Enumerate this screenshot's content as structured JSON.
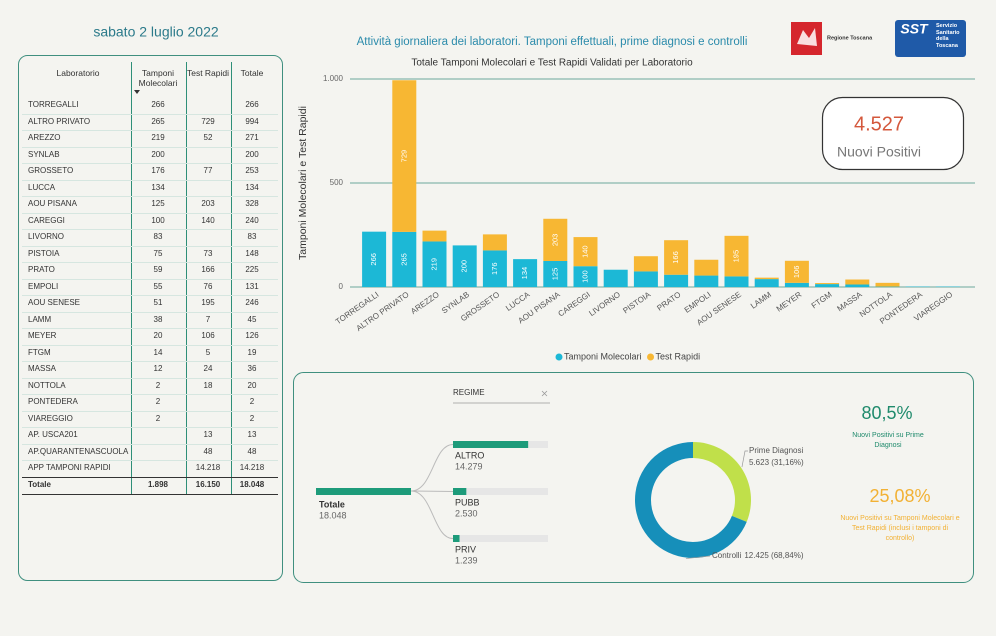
{
  "header": {
    "date": "sabato 2 luglio 2022",
    "title": "Attività giornaliera dei laboratori. Tamponi effettuali, prime diagnosi e controlli",
    "logos": [
      "Regione Toscana",
      "SST",
      "Servizio Sanitario della Toscana"
    ]
  },
  "table": {
    "columns": [
      "Laboratorio",
      "Tamponi Molecolari",
      "Test Rapidi",
      "Totale"
    ],
    "rows": [
      [
        "TORREGALLI",
        "266",
        null,
        "266"
      ],
      [
        "ALTRO PRIVATO",
        "265",
        "729",
        "994"
      ],
      [
        "AREZZO",
        "219",
        "52",
        "271"
      ],
      [
        "SYNLAB",
        "200",
        null,
        "200"
      ],
      [
        "GROSSETO",
        "176",
        "77",
        "253"
      ],
      [
        "LUCCA",
        "134",
        null,
        "134"
      ],
      [
        "AOU PISANA",
        "125",
        "203",
        "328"
      ],
      [
        "CAREGGI",
        "100",
        "140",
        "240"
      ],
      [
        "LIVORNO",
        "83",
        null,
        "83"
      ],
      [
        "PISTOIA",
        "75",
        "73",
        "148"
      ],
      [
        "PRATO",
        "59",
        "166",
        "225"
      ],
      [
        "EMPOLI",
        "55",
        "76",
        "131"
      ],
      [
        "AOU SENESE",
        "51",
        "195",
        "246"
      ],
      [
        "LAMM",
        "38",
        "7",
        "45"
      ],
      [
        "MEYER",
        "20",
        "106",
        "126"
      ],
      [
        "FTGM",
        "14",
        "5",
        "19"
      ],
      [
        "MASSA",
        "12",
        "24",
        "36"
      ],
      [
        "NOTTOLA",
        "2",
        "18",
        "20"
      ],
      [
        "PONTEDERA",
        "2",
        null,
        "2"
      ],
      [
        "VIAREGGIO",
        "2",
        null,
        "2"
      ],
      [
        "AP. USCA201",
        null,
        "13",
        "13"
      ],
      [
        "AP.QUARANTENASCUOLA",
        null,
        "48",
        "48"
      ],
      [
        "APP TAMPONI RAPIDI",
        null,
        "14.218",
        "14.218"
      ]
    ],
    "total": [
      "Totale",
      "1.898",
      "16.150",
      "18.048"
    ]
  },
  "kpis": [
    {
      "value": "4.527",
      "label": "Nuovi Positivi"
    },
    {
      "value": "80,5%",
      "label": "Nuovi Positivi su Prime Diagnosi"
    },
    {
      "value": "25,08%",
      "label": "Nuovi Positivi su Tamponi Molecolari e Test Rapidi (inclusi i tamponi di controllo)"
    }
  ],
  "chart_data": [
    {
      "type": "bar",
      "stacked": true,
      "title": "Totale Tamponi Molecolari e Test Rapidi Validati per Laboratorio",
      "y_label": "Tamponi Molecolari e Test Rapidi",
      "categories": [
        "TORREGALLI",
        "ALTRO PRIVATO",
        "AREZZO",
        "SYNLAB",
        "GROSSETO",
        "LUCCA",
        "AOU PISANA",
        "CAREGGI",
        "LIVORNO",
        "PISTOIA",
        "PRATO",
        "EMPOLI",
        "AOU SENESE",
        "LAMM",
        "MEYER",
        "FTGM",
        "MASSA",
        "NOTTOLA",
        "PONTEDERA",
        "VIAREGGIO"
      ],
      "series": [
        {
          "name": "Tamponi Molecolari",
          "color": "#1cb8d6",
          "values": [
            266,
            265,
            219,
            200,
            176,
            134,
            125,
            100,
            83,
            75,
            59,
            55,
            51,
            38,
            20,
            14,
            12,
            2,
            2,
            2
          ]
        },
        {
          "name": "Test Rapidi",
          "color": "#f7b733",
          "values": [
            null,
            729,
            52,
            null,
            77,
            null,
            203,
            140,
            null,
            73,
            166,
            76,
            195,
            7,
            106,
            5,
            24,
            18,
            null,
            null
          ]
        }
      ],
      "ylim": [
        0,
        1000
      ],
      "yticks": [
        0,
        500,
        {
          "value": 1000,
          "label": "1.000"
        }
      ],
      "grid": true,
      "legend": "bottom"
    },
    {
      "type": "decomposition",
      "field": "REGIME",
      "root": {
        "name": "Totale",
        "value": 18048,
        "value_label": "18.048"
      },
      "categories": [
        "ALTRO",
        "PUBB",
        "PRIV"
      ],
      "values": [
        14279,
        2530,
        1239
      ],
      "value_labels": [
        "14.279",
        "2.530",
        "1.239"
      ],
      "color": "#1d9b7a"
    },
    {
      "type": "donut",
      "categories": [
        "Prime Diagnosi",
        "Controlli"
      ],
      "values": [
        5623,
        12425
      ],
      "value_labels": [
        "5.623 (31,16%)",
        "12.425 (68,84%)"
      ],
      "colors": [
        "#c0e04a",
        "#168fba"
      ]
    }
  ]
}
